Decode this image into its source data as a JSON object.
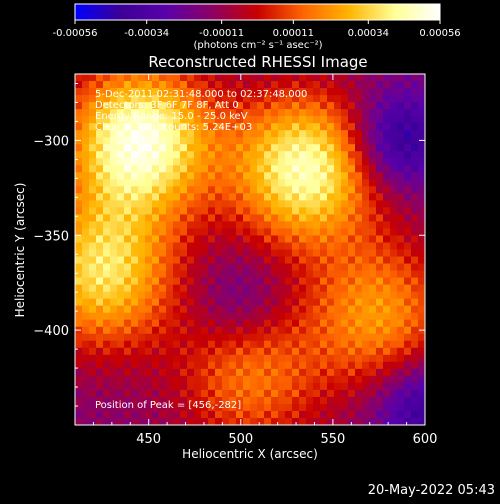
{
  "chart_data": {
    "type": "heatmap",
    "title": "Reconstructed RHESSI Image",
    "xlabel": "Heliocentric X (arcsec)",
    "ylabel": "Heliocentric Y (arcsec)",
    "xlim": [
      410,
      600
    ],
    "ylim": [
      -450,
      -265
    ],
    "xticks": [
      450,
      500,
      550,
      600
    ],
    "yticks": [
      -300,
      -350,
      -400
    ],
    "colorbar": {
      "min": -0.00056,
      "max": 0.00056,
      "ticks": [
        -0.00056,
        -0.00034,
        -0.00011,
        0.00011,
        0.00034,
        0.00056
      ],
      "tick_labels": [
        "-0.00056",
        "-0.00034",
        "-0.00011",
        "0.00011",
        "0.00034",
        "0.00056"
      ],
      "units_label": "(photons cm⁻² s⁻¹ asec⁻²)",
      "colors": [
        "#0000ff",
        "#3c0096",
        "#5a00aa",
        "#8c0064",
        "#c80000",
        "#ff6400",
        "#ffb400",
        "#ffff96",
        "#ffffff"
      ]
    },
    "annotations": {
      "time_range": "5-Dec-2011 02:31:48.000 to 02:37:48.000",
      "detectors": "Detectors: 3F 6F 7F 8F, Att 0",
      "energy_range": "Energy Range: 15.0 - 25.0 keV",
      "method_counts": "Clean    Total counts: 5.24E+03",
      "peak": "Position of Peak = [456,-282]"
    },
    "peak_position": [
      456,
      -282
    ],
    "hot_regions": [
      {
        "x": 445,
        "y": -300,
        "value": 0.00052
      },
      {
        "x": 535,
        "y": -315,
        "value": 0.00046
      },
      {
        "x": 425,
        "y": -370,
        "value": 0.00036
      },
      {
        "x": 575,
        "y": -392,
        "value": 0.00022
      },
      {
        "x": 505,
        "y": -425,
        "value": 0.00016
      }
    ],
    "cold_regions": [
      {
        "x": 585,
        "y": -300,
        "value": -0.0005
      },
      {
        "x": 598,
        "y": -440,
        "value": -0.00044
      },
      {
        "x": 500,
        "y": -385,
        "value": -0.0003
      }
    ]
  },
  "footer": {
    "timestamp": "20-May-2022 05:43"
  }
}
